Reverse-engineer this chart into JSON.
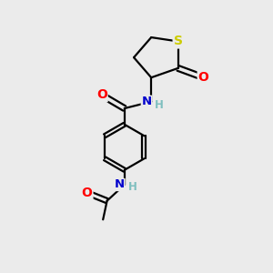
{
  "background_color": "#ebebeb",
  "atom_colors": {
    "C": "#000000",
    "N": "#0000cc",
    "O": "#ff0000",
    "S": "#cccc00",
    "H": "#7fbfbf"
  },
  "bond_color": "#000000",
  "figsize": [
    3.0,
    3.0
  ],
  "dpi": 100,
  "lw": 1.6
}
